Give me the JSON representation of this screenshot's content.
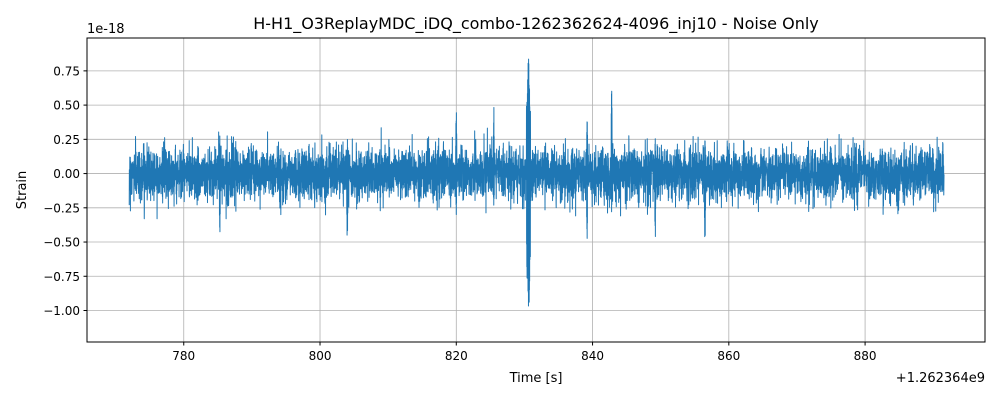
{
  "chart_data": {
    "type": "line",
    "title": "H-H1_O3ReplayMDC_iDQ_combo-1262362624-4096_inj10 - Noise Only",
    "xlabel": "Time [s]",
    "ylabel": "Strain",
    "x_offset_label": "+1.262364e9",
    "y_scale_label": "1e-18",
    "xlim": [
      765.8,
      897.6
    ],
    "ylim": [
      -1.23,
      0.99
    ],
    "xticks": [
      780,
      800,
      820,
      840,
      860,
      880
    ],
    "xtick_labels": [
      "780",
      "800",
      "820",
      "840",
      "860",
      "880"
    ],
    "yticks": [
      0.75,
      0.5,
      0.25,
      0.0,
      -0.25,
      -0.5,
      -0.75,
      -1.0
    ],
    "ytick_labels": [
      "0.75",
      "0.50",
      "0.25",
      "0.00",
      "−0.25",
      "−0.50",
      "−0.75",
      "−1.00"
    ],
    "grid": true,
    "series": [
      {
        "name": "strain",
        "color": "#1f77b4",
        "x_start": 772.0,
        "x_end": 891.6,
        "noise_std": 0.085,
        "transients": [
          {
            "x": 830.6,
            "peak_high": 0.89,
            "peak_low": -1.13,
            "duration": 0.6
          },
          {
            "x": 842.8,
            "peak_high": 0.74,
            "peak_low": -0.3,
            "duration": 0.15
          },
          {
            "x": 820.0,
            "peak_high": 0.55,
            "peak_low": -0.3,
            "duration": 0.15
          },
          {
            "x": 825.5,
            "peak_high": 0.55,
            "peak_low": -0.3,
            "duration": 0.15
          },
          {
            "x": 804.0,
            "peak_high": 0.3,
            "peak_low": -0.55,
            "duration": 0.15
          },
          {
            "x": 785.3,
            "peak_high": 0.3,
            "peak_low": -0.53,
            "duration": 0.15
          },
          {
            "x": 839.2,
            "peak_high": 0.45,
            "peak_low": -0.55,
            "duration": 0.15
          },
          {
            "x": 856.5,
            "peak_high": 0.3,
            "peak_low": -0.58,
            "duration": 0.15
          },
          {
            "x": 849.2,
            "peak_high": 0.3,
            "peak_low": -0.54,
            "duration": 0.15
          }
        ]
      }
    ]
  }
}
